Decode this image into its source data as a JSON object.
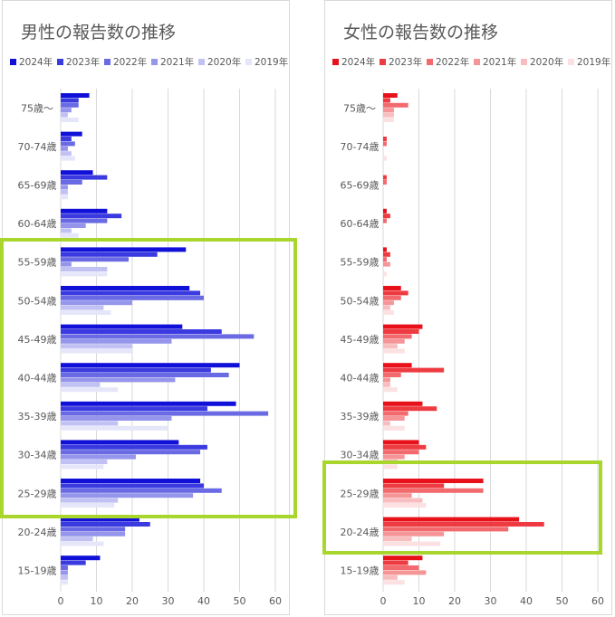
{
  "chart_data": [
    {
      "type": "bar",
      "orientation": "horizontal",
      "title": "男性の報告数の推移",
      "categories": [
        "75歳～",
        "70-74歳",
        "65-69歳",
        "60-64歳",
        "55-59歳",
        "50-54歳",
        "45-49歳",
        "40-44歳",
        "35-39歳",
        "30-34歳",
        "25-29歳",
        "20-24歳",
        "15-19歳"
      ],
      "series": [
        {
          "name": "2024年",
          "color": "#1010d8",
          "values": [
            8,
            6,
            9,
            13,
            35,
            36,
            34,
            50,
            49,
            33,
            39,
            22,
            11
          ]
        },
        {
          "name": "2023年",
          "color": "#3a3ae0",
          "values": [
            5,
            3,
            13,
            17,
            27,
            39,
            45,
            42,
            41,
            41,
            40,
            25,
            7
          ]
        },
        {
          "name": "2022年",
          "color": "#6a6ae4",
          "values": [
            5,
            4,
            6,
            13,
            19,
            40,
            54,
            47,
            58,
            39,
            45,
            18,
            2
          ]
        },
        {
          "name": "2021年",
          "color": "#9595ec",
          "values": [
            3,
            2,
            2,
            7,
            3,
            20,
            31,
            32,
            31,
            21,
            37,
            18,
            2
          ]
        },
        {
          "name": "2020年",
          "color": "#c1c1f4",
          "values": [
            2,
            3,
            2,
            3,
            13,
            12,
            20,
            11,
            16,
            13,
            16,
            9,
            2
          ]
        },
        {
          "name": "2019年",
          "color": "#e6e6fa",
          "values": [
            5,
            4,
            2,
            5,
            13,
            14,
            20,
            16,
            30,
            12,
            15,
            12,
            2
          ]
        }
      ],
      "xlim": [
        0,
        60
      ],
      "xticks": [
        "0",
        "10",
        "20",
        "30",
        "40",
        "50",
        "60"
      ],
      "legend_position": "top",
      "grid": true,
      "highlight_categories": [
        "55-59歳",
        "25-29歳"
      ]
    },
    {
      "type": "bar",
      "orientation": "horizontal",
      "title": "女性の報告数の推移",
      "categories": [
        "75歳～",
        "70-74歳",
        "65-69歳",
        "60-64歳",
        "55-59歳",
        "50-54歳",
        "45-49歳",
        "40-44歳",
        "35-39歳",
        "30-34歳",
        "25-29歳",
        "20-24歳",
        "15-19歳"
      ],
      "series": [
        {
          "name": "2024年",
          "color": "#e8111a",
          "values": [
            4,
            0,
            0,
            1,
            1,
            5,
            11,
            8,
            11,
            10,
            28,
            38,
            11
          ]
        },
        {
          "name": "2023年",
          "color": "#ee3b41",
          "values": [
            2,
            1,
            1,
            2,
            2,
            7,
            10,
            17,
            15,
            12,
            17,
            45,
            7
          ]
        },
        {
          "name": "2022年",
          "color": "#f26a6e",
          "values": [
            7,
            1,
            1,
            1,
            1,
            5,
            8,
            5,
            7,
            10,
            28,
            35,
            10
          ]
        },
        {
          "name": "2021年",
          "color": "#f59598",
          "values": [
            3,
            0,
            0,
            0,
            2,
            3,
            6,
            2,
            6,
            6,
            8,
            17,
            12
          ]
        },
        {
          "name": "2020年",
          "color": "#f8bdbf",
          "values": [
            3,
            0,
            0,
            0,
            0,
            2,
            4,
            2,
            2,
            4,
            11,
            8,
            4
          ]
        },
        {
          "name": "2019年",
          "color": "#fbe1e2",
          "values": [
            3,
            1,
            0,
            0,
            1,
            3,
            6,
            4,
            6,
            4,
            12,
            16,
            6
          ]
        }
      ],
      "xlim": [
        0,
        60
      ],
      "xticks": [
        "0",
        "10",
        "20",
        "30",
        "40",
        "50",
        "60"
      ],
      "legend_position": "top",
      "grid": true,
      "highlight_categories": [
        "25-29歳",
        "20-24歳"
      ]
    }
  ]
}
